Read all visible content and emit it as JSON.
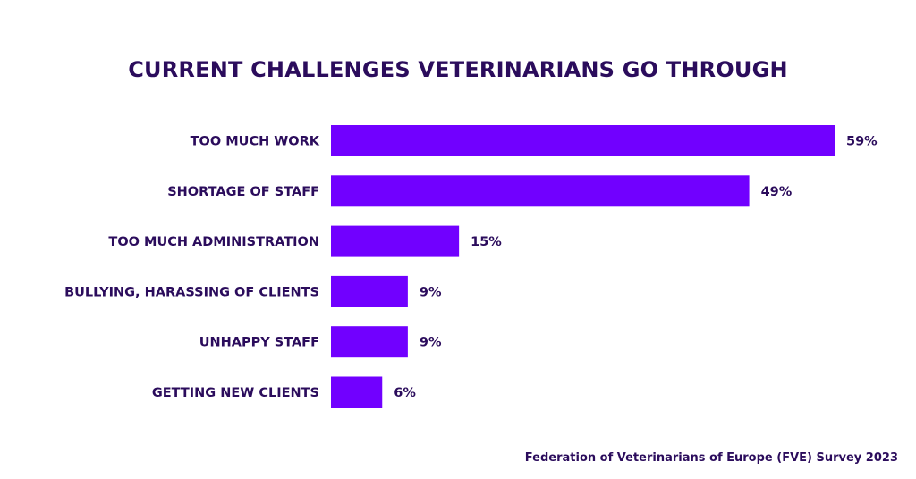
{
  "chart_data": {
    "type": "bar",
    "orientation": "horizontal",
    "title": "CURRENT CHALLENGES VETERINARIANS GO THROUGH",
    "categories": [
      "TOO MUCH WORK",
      "SHORTAGE OF STAFF",
      "TOO MUCH ADMINISTRATION",
      "BULLYING, HARASSING OF CLIENTS",
      "UNHAPPY STAFF",
      "GETTING NEW CLIENTS"
    ],
    "values": [
      59,
      49,
      15,
      9,
      9,
      6
    ],
    "value_labels": [
      "59%",
      "49%",
      "15%",
      "9%",
      "9%",
      "6%"
    ],
    "unit": "%",
    "xlabel": "",
    "ylabel": "",
    "grid": false,
    "bar_color": "#7100ff",
    "text_color": "#2b0c5c",
    "source": "Federation of Veterinarians of Europe (FVE) Survey 2023"
  }
}
